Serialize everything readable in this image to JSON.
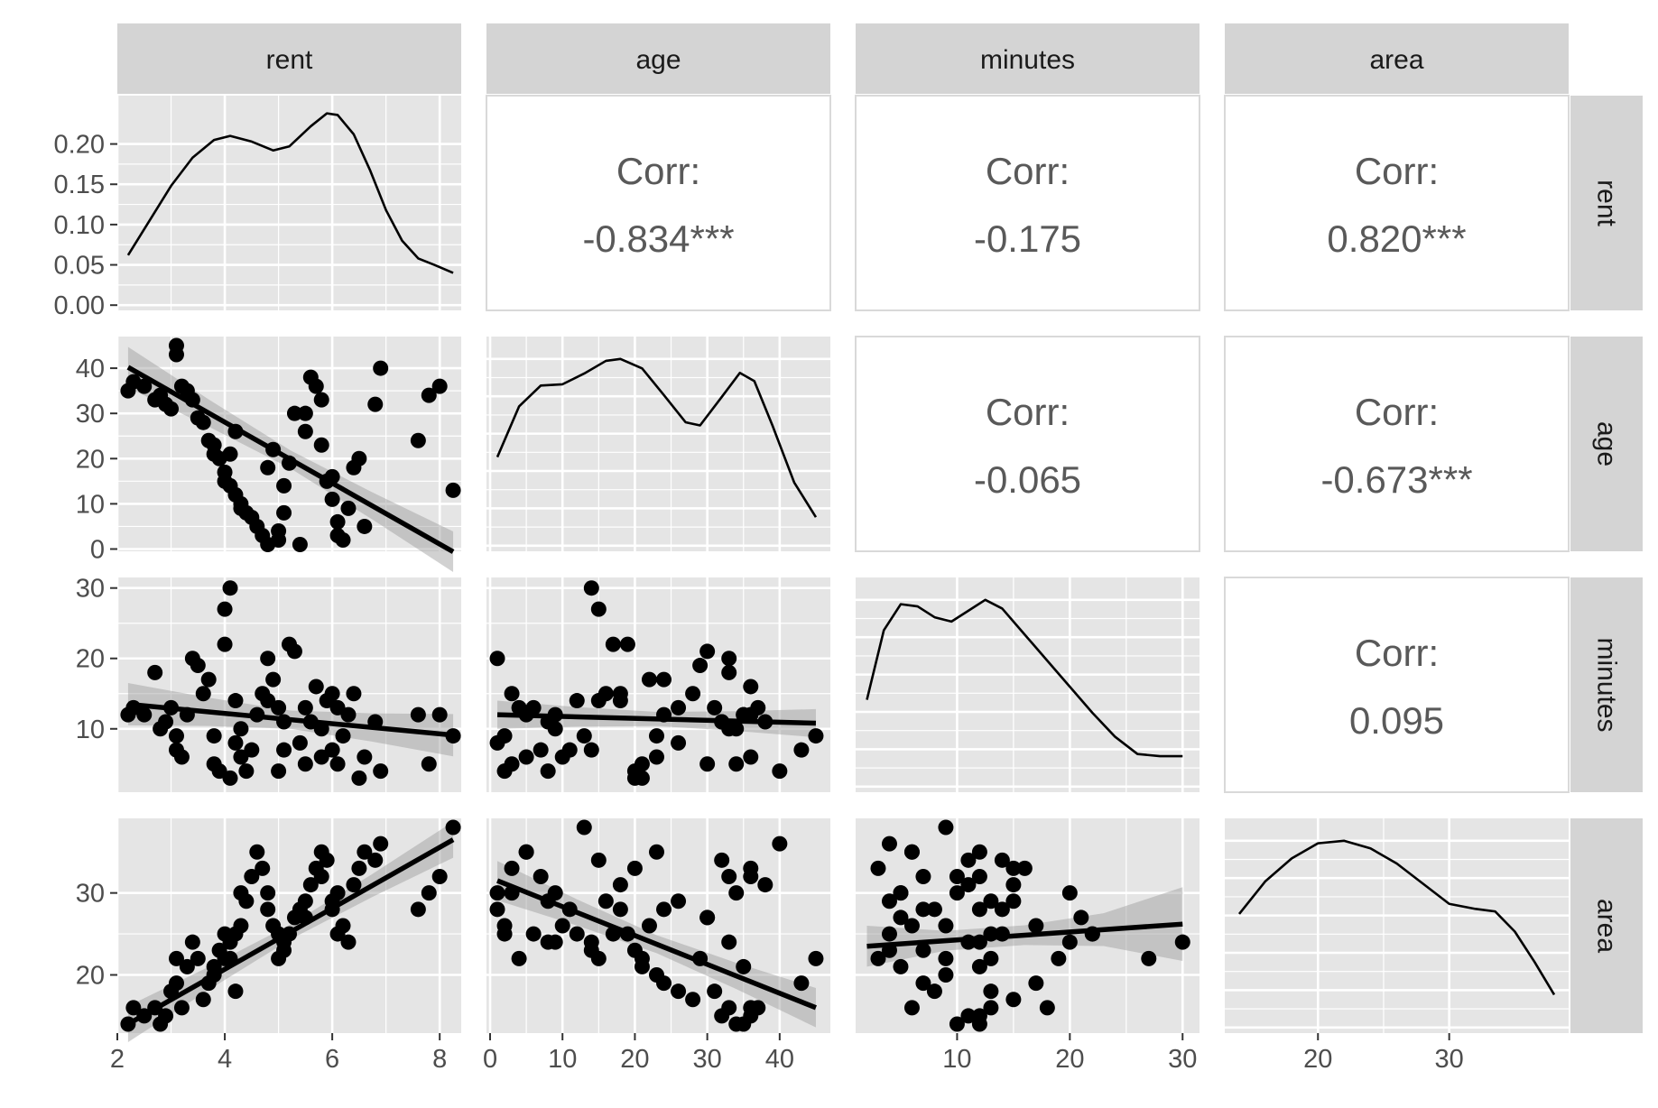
{
  "chart_data": {
    "type": "scatter-matrix",
    "variables": [
      "rent",
      "age",
      "minutes",
      "area"
    ],
    "colors": {
      "panel_bg": "#e5e5e5",
      "grid": "#ffffff",
      "strip_bg": "#d4d4d4",
      "points": "#000000",
      "ribbon": "#999999",
      "corr_text": "#595959"
    },
    "axes": {
      "rent": {
        "lim": [
          2.0,
          8.4
        ],
        "ticks": [
          2,
          4,
          6,
          8
        ],
        "tick_labels": [
          "2",
          "4",
          "6",
          "8"
        ]
      },
      "age": {
        "lim": [
          -0.5,
          47
        ],
        "ticks": [
          0,
          10,
          20,
          30,
          40
        ],
        "tick_labels": [
          "0",
          "10",
          "20",
          "30",
          "40"
        ]
      },
      "minutes": {
        "lim": [
          1.0,
          31.5
        ],
        "ticks": [
          10,
          20,
          30
        ],
        "tick_labels": [
          "10",
          "20",
          "30"
        ]
      },
      "area": {
        "lim": [
          12.9,
          39.1
        ],
        "ticks": [
          20,
          30
        ],
        "tick_labels": [
          "20",
          "30"
        ]
      }
    },
    "density_axis": {
      "lim": [
        -0.0065,
        0.26
      ],
      "ticks": [
        0.0,
        0.05,
        0.1,
        0.15,
        0.2
      ],
      "tick_labels": [
        "0.00",
        "0.05",
        "0.10",
        "0.15",
        "0.20"
      ]
    },
    "correlations": [
      {
        "row": "rent",
        "col": "age",
        "label": "Corr:",
        "value": "-0.834***"
      },
      {
        "row": "rent",
        "col": "minutes",
        "label": "Corr:",
        "value": "-0.175"
      },
      {
        "row": "rent",
        "col": "area",
        "label": "Corr:",
        "value": "0.820***"
      },
      {
        "row": "age",
        "col": "minutes",
        "label": "Corr:",
        "value": "-0.065"
      },
      {
        "row": "age",
        "col": "area",
        "label": "Corr:",
        "value": "-0.673***"
      },
      {
        "row": "minutes",
        "col": "area",
        "label": "Corr:",
        "value": "0.095"
      }
    ],
    "densities": {
      "rent": [
        [
          2.2,
          0.062
        ],
        [
          2.6,
          0.105
        ],
        [
          3.0,
          0.148
        ],
        [
          3.4,
          0.183
        ],
        [
          3.8,
          0.205
        ],
        [
          4.1,
          0.21
        ],
        [
          4.5,
          0.203
        ],
        [
          4.9,
          0.192
        ],
        [
          5.2,
          0.197
        ],
        [
          5.6,
          0.222
        ],
        [
          5.9,
          0.238
        ],
        [
          6.1,
          0.236
        ],
        [
          6.4,
          0.212
        ],
        [
          6.7,
          0.168
        ],
        [
          7.0,
          0.118
        ],
        [
          7.3,
          0.08
        ],
        [
          7.6,
          0.058
        ],
        [
          7.9,
          0.05
        ],
        [
          8.25,
          0.04
        ]
      ],
      "age": [
        [
          1,
          0.014
        ],
        [
          4,
          0.022
        ],
        [
          7,
          0.0253
        ],
        [
          10,
          0.0255
        ],
        [
          13,
          0.0272
        ],
        [
          16,
          0.0292
        ],
        [
          18,
          0.0295
        ],
        [
          21,
          0.028
        ],
        [
          24,
          0.0238
        ],
        [
          27,
          0.0195
        ],
        [
          29,
          0.019
        ],
        [
          32,
          0.0235
        ],
        [
          34.5,
          0.0273
        ],
        [
          36.5,
          0.026
        ],
        [
          39,
          0.019
        ],
        [
          42,
          0.01
        ],
        [
          45,
          0.0045
        ]
      ],
      "minutes": [
        [
          2,
          0.04
        ],
        [
          3.5,
          0.072
        ],
        [
          5,
          0.084
        ],
        [
          6.5,
          0.083
        ],
        [
          8,
          0.078
        ],
        [
          9.5,
          0.076
        ],
        [
          11,
          0.081
        ],
        [
          12.5,
          0.086
        ],
        [
          14,
          0.082
        ],
        [
          16,
          0.07
        ],
        [
          18,
          0.058
        ],
        [
          20,
          0.046
        ],
        [
          22,
          0.034
        ],
        [
          24,
          0.023
        ],
        [
          26,
          0.015
        ],
        [
          28,
          0.014
        ],
        [
          30,
          0.014
        ]
      ],
      "area": [
        [
          14,
          0.045
        ],
        [
          16,
          0.058
        ],
        [
          18,
          0.067
        ],
        [
          20,
          0.073
        ],
        [
          22,
          0.074
        ],
        [
          24,
          0.071
        ],
        [
          26,
          0.065
        ],
        [
          28,
          0.057
        ],
        [
          30,
          0.049
        ],
        [
          32,
          0.047
        ],
        [
          33.5,
          0.046
        ],
        [
          35,
          0.038
        ],
        [
          36.5,
          0.026
        ],
        [
          38,
          0.013
        ]
      ]
    },
    "regressions": {
      "rent_age": {
        "x": [
          2.2,
          8.25
        ],
        "y": [
          40.2,
          -0.6
        ],
        "band": [
          4.5,
          3.0,
          2.0,
          3.0,
          4.5
        ]
      },
      "rent_minutes": {
        "x": [
          2.2,
          8.25
        ],
        "y": [
          13.5,
          9.1
        ],
        "band": [
          3.0,
          2.0,
          1.3,
          2.0,
          3.0
        ]
      },
      "age_minutes": {
        "x": [
          1,
          45
        ],
        "y": [
          12.0,
          10.8
        ],
        "band": [
          2.0,
          1.4,
          1.0,
          1.4,
          2.0
        ]
      },
      "rent_area": {
        "x": [
          2.2,
          8.25
        ],
        "y": [
          14.0,
          36.5
        ],
        "band": [
          2.2,
          1.4,
          0.9,
          1.4,
          2.2
        ]
      },
      "age_area": {
        "x": [
          1,
          45
        ],
        "y": [
          31.5,
          16.0
        ],
        "band": [
          2.4,
          1.6,
          1.1,
          1.6,
          2.4
        ]
      },
      "minutes_area": {
        "x": [
          2,
          30
        ],
        "y": [
          23.5,
          26.2
        ],
        "band": [
          2.5,
          1.2,
          1.2,
          2.0,
          4.5
        ]
      }
    },
    "observations": {
      "rent": [
        2.2,
        2.3,
        2.5,
        2.7,
        2.8,
        2.9,
        3.0,
        3.1,
        3.1,
        3.2,
        3.3,
        3.4,
        3.5,
        3.6,
        3.7,
        3.8,
        3.8,
        3.9,
        4.0,
        4.0,
        4.1,
        4.1,
        4.2,
        4.2,
        4.3,
        4.3,
        4.4,
        4.5,
        4.6,
        4.7,
        4.8,
        4.8,
        4.9,
        5.0,
        5.0,
        5.1,
        5.1,
        5.2,
        5.3,
        5.4,
        5.5,
        5.5,
        5.6,
        5.7,
        5.8,
        5.8,
        5.9,
        6.0,
        6.0,
        6.1,
        6.1,
        6.2,
        6.3,
        6.4,
        6.5,
        6.6,
        6.8,
        6.9,
        7.6,
        7.8,
        8.0,
        8.25
      ],
      "age": [
        35,
        37,
        36,
        33,
        34,
        32,
        31,
        45,
        43,
        36,
        35,
        33,
        29,
        28,
        24,
        23,
        21,
        20,
        17,
        15,
        14,
        21,
        26,
        12,
        10,
        9,
        8,
        7,
        5,
        3,
        1,
        18,
        22,
        2,
        4,
        8,
        14,
        19,
        30,
        1,
        26,
        30,
        38,
        36,
        33,
        23,
        15,
        16,
        11,
        3,
        6,
        2,
        9,
        18,
        20,
        5,
        32,
        40,
        24,
        34,
        36,
        13
      ],
      "minutes": [
        12,
        13,
        12,
        18,
        10,
        11,
        13,
        9,
        7,
        6,
        12,
        20,
        19,
        15,
        17,
        9,
        5,
        4,
        22,
        27,
        30,
        3,
        8,
        14,
        6,
        10,
        4,
        7,
        12,
        15,
        20,
        14,
        17,
        4,
        13,
        11,
        7,
        22,
        21,
        8,
        13,
        5,
        11,
        16,
        10,
        6,
        14,
        15,
        7,
        5,
        13,
        9,
        12,
        15,
        3,
        6,
        11,
        4,
        12,
        5,
        12,
        9
      ],
      "area": [
        14,
        16,
        15,
        16,
        14,
        15,
        18,
        22,
        19,
        16,
        21,
        24,
        22,
        17,
        19,
        20,
        21,
        23,
        25,
        22,
        24,
        22,
        18,
        25,
        26,
        30,
        29,
        32,
        35,
        33,
        30,
        28,
        26,
        25,
        22,
        24,
        23,
        25,
        27,
        28,
        29,
        27,
        31,
        33,
        32,
        35,
        34,
        29,
        28,
        30,
        25,
        26,
        24,
        31,
        33,
        35,
        34,
        36,
        28,
        30,
        32,
        38
      ]
    }
  }
}
